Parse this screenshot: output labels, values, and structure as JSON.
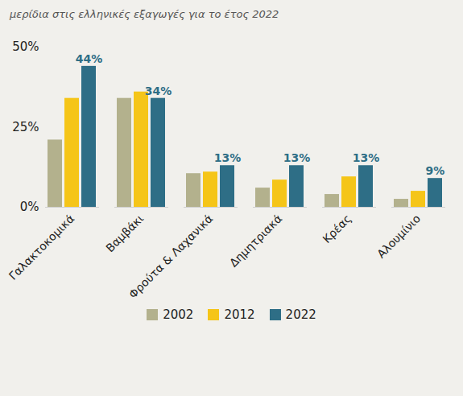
{
  "chart_data": {
    "type": "bar",
    "subtitle": "μερίδια στις ελληνικές εξαγωγές για το έτος 2022",
    "categories": [
      "Γαλακτοκομικά",
      "Βαμβάκι",
      "Φρούτα & Λαχανικά",
      "Δημητριακά",
      "Κρέας",
      "Αλουμίνιο"
    ],
    "series": [
      {
        "name": "2002",
        "color": "#b3b18d",
        "values": [
          21,
          34,
          10.5,
          6,
          4,
          2.5
        ]
      },
      {
        "name": "2012",
        "color": "#f5c518",
        "values": [
          34,
          36,
          11,
          8.5,
          9.5,
          5
        ]
      },
      {
        "name": "2022",
        "color": "#2e6e86",
        "values": [
          44,
          34,
          13,
          13,
          13,
          9
        ],
        "data_labels": true,
        "value_labels": [
          "44%",
          "34%",
          "13%",
          "13%",
          "13%",
          "9%"
        ]
      }
    ],
    "ylim": [
      0,
      50
    ],
    "yticks": [
      {
        "value": 0,
        "label": "0%"
      },
      {
        "value": 25,
        "label": "25%"
      },
      {
        "value": 50,
        "label": "50%"
      }
    ],
    "grid": false,
    "legend": "bottom"
  }
}
